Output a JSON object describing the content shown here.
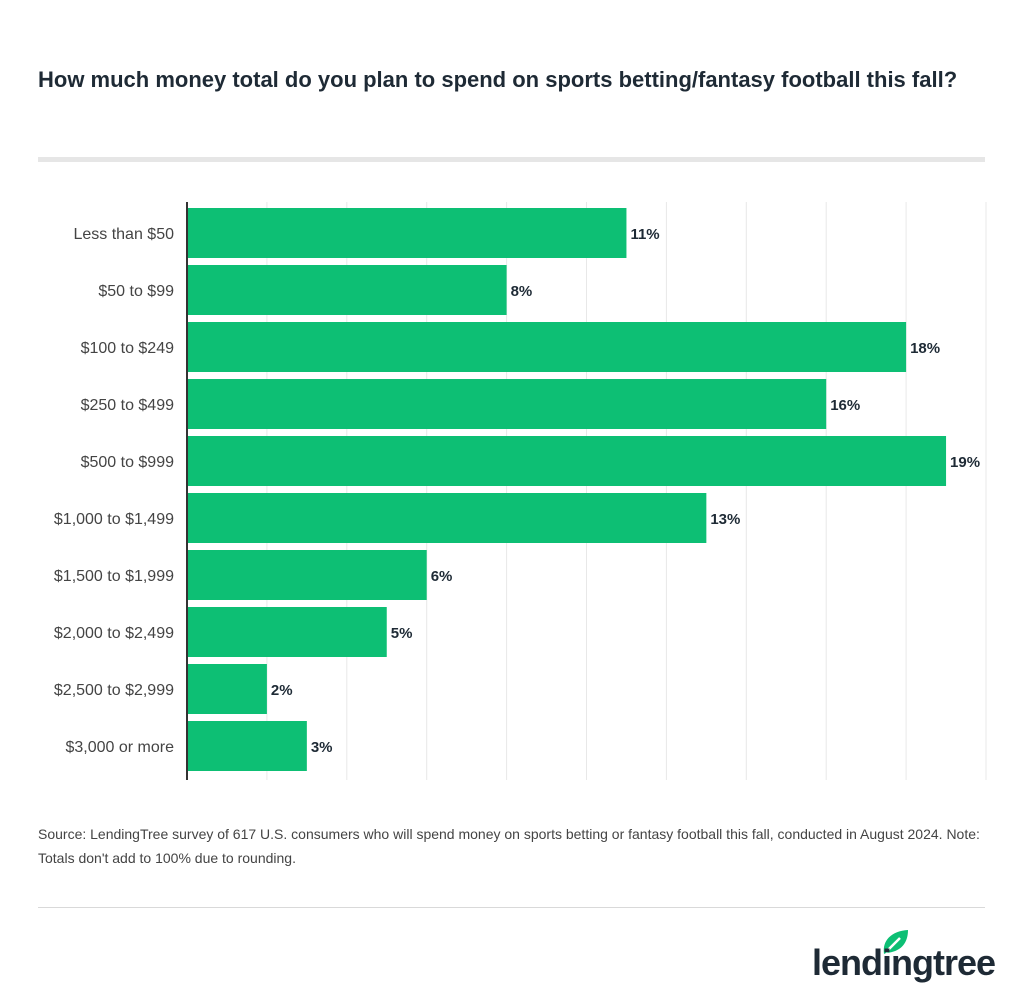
{
  "chart_data": {
    "type": "bar",
    "orientation": "horizontal",
    "title": "How much money total do you plan to spend on sports betting/fantasy football this fall?",
    "categories": [
      "Less than $50",
      "$50 to $99",
      "$100 to $249",
      "$250 to $499",
      "$500 to $999",
      "$1,000 to $1,499",
      "$1,500 to $1,999",
      "$2,000 to $2,499",
      "$2,500 to $2,999",
      "$3,000 or more"
    ],
    "values": [
      11,
      8,
      18,
      16,
      19,
      13,
      6,
      5,
      2,
      3
    ],
    "data_labels": [
      "11%",
      "8%",
      "18%",
      "16%",
      "19%",
      "13%",
      "6%",
      "5%",
      "2%",
      "3%"
    ],
    "xlim": [
      0,
      20
    ],
    "grid": true,
    "bar_color": "#0dbf74"
  },
  "source": "Source: LendingTree survey of 617 U.S. consumers who will spend money on sports betting or fantasy football this fall, conducted in August 2024. Note: Totals don't add to 100% due to rounding.",
  "logo": {
    "text": "lendingtree",
    "brand_color": "#0dbf74"
  }
}
